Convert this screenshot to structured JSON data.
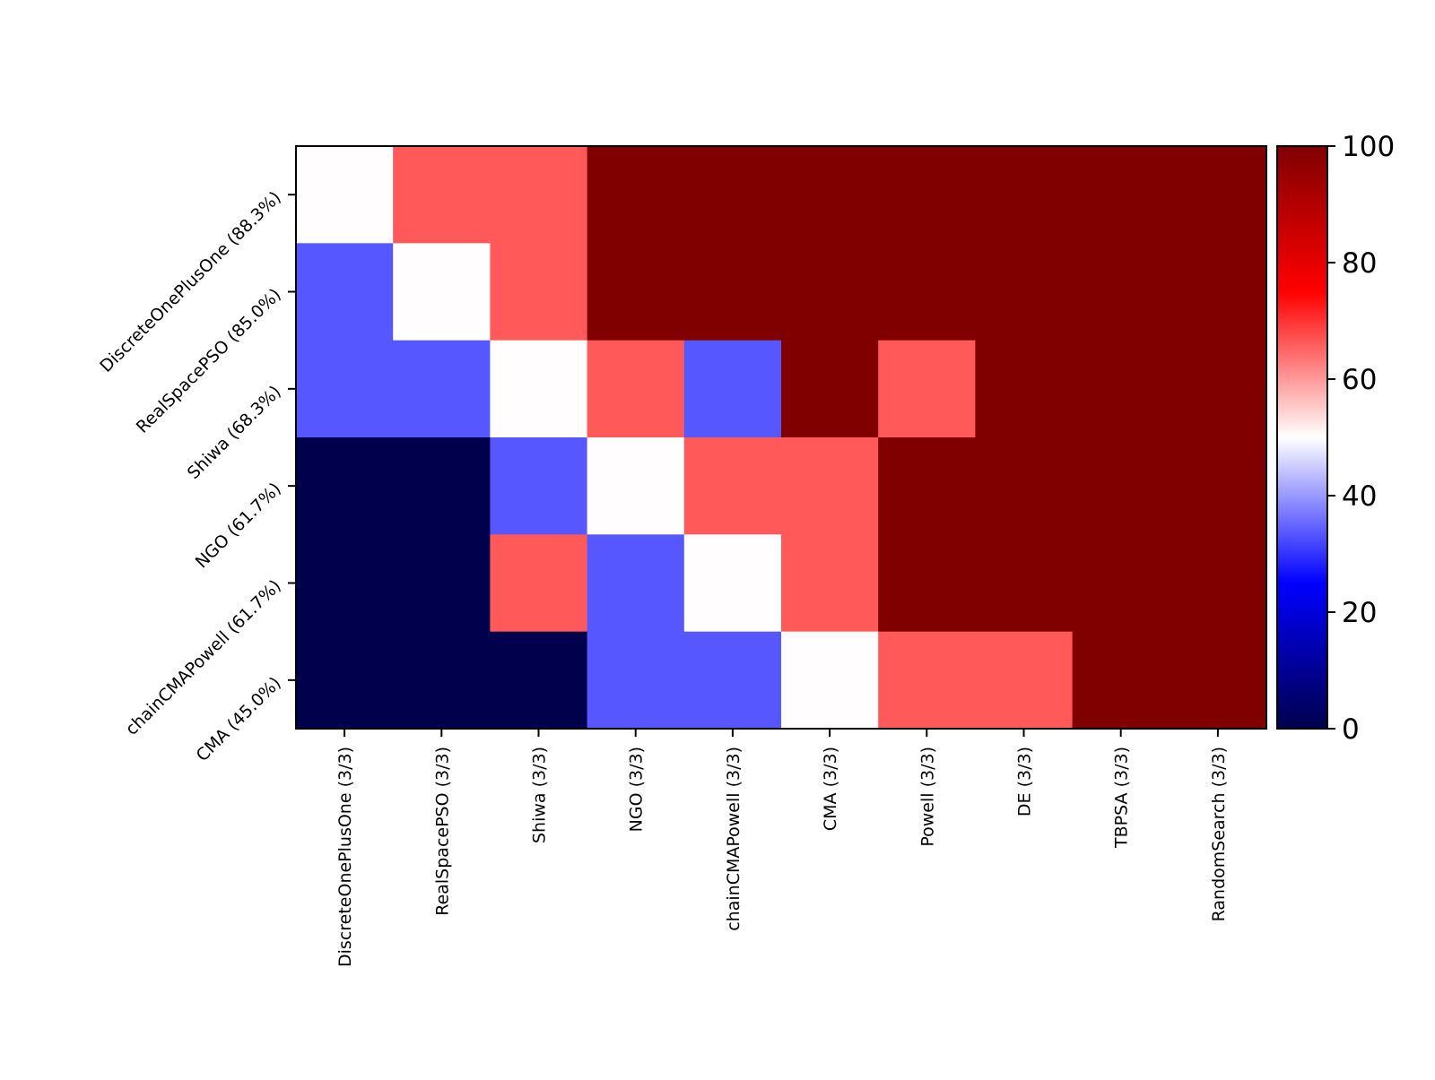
{
  "chart_data": {
    "type": "heatmap",
    "title": "",
    "xlabel": "",
    "ylabel": "",
    "x_categories": [
      "DiscreteOnePlusOne (3/3)",
      "RealSpacePSO (3/3)",
      "Shiwa (3/3)",
      "NGO (3/3)",
      "chainCMAPowell (3/3)",
      "CMA (3/3)",
      "Powell (3/3)",
      "DE (3/3)",
      "TBPSA (3/3)",
      "RandomSearch (3/3)"
    ],
    "y_categories": [
      "DiscreteOnePlusOne (88.3%)",
      "RealSpacePSO (85.0%)",
      "Shiwa (68.3%)",
      "NGO (61.7%)",
      "chainCMAPowell (61.7%)",
      "CMA (45.0%)"
    ],
    "values": [
      [
        50,
        66.7,
        66.7,
        100,
        100,
        100,
        100,
        100,
        100,
        100
      ],
      [
        33.3,
        50,
        66.7,
        100,
        100,
        100,
        100,
        100,
        100,
        100
      ],
      [
        33.3,
        33.3,
        50,
        66.7,
        33.3,
        100,
        66.7,
        100,
        100,
        100
      ],
      [
        0,
        0,
        33.3,
        50,
        66.7,
        66.7,
        100,
        100,
        100,
        100
      ],
      [
        0,
        0,
        66.7,
        33.3,
        50,
        66.7,
        100,
        100,
        100,
        100
      ],
      [
        0,
        0,
        0,
        33.3,
        33.3,
        50,
        66.7,
        66.7,
        100,
        100
      ]
    ],
    "colorbar": {
      "min": 0,
      "max": 100,
      "ticks": [
        0,
        20,
        40,
        60,
        80,
        100
      ],
      "colormap": "seismic"
    },
    "colors": {
      "c0": "#00004c",
      "c33": "#5757ff",
      "c50": "#fffdfd",
      "c67": "#ff5959",
      "c100": "#800000"
    }
  }
}
